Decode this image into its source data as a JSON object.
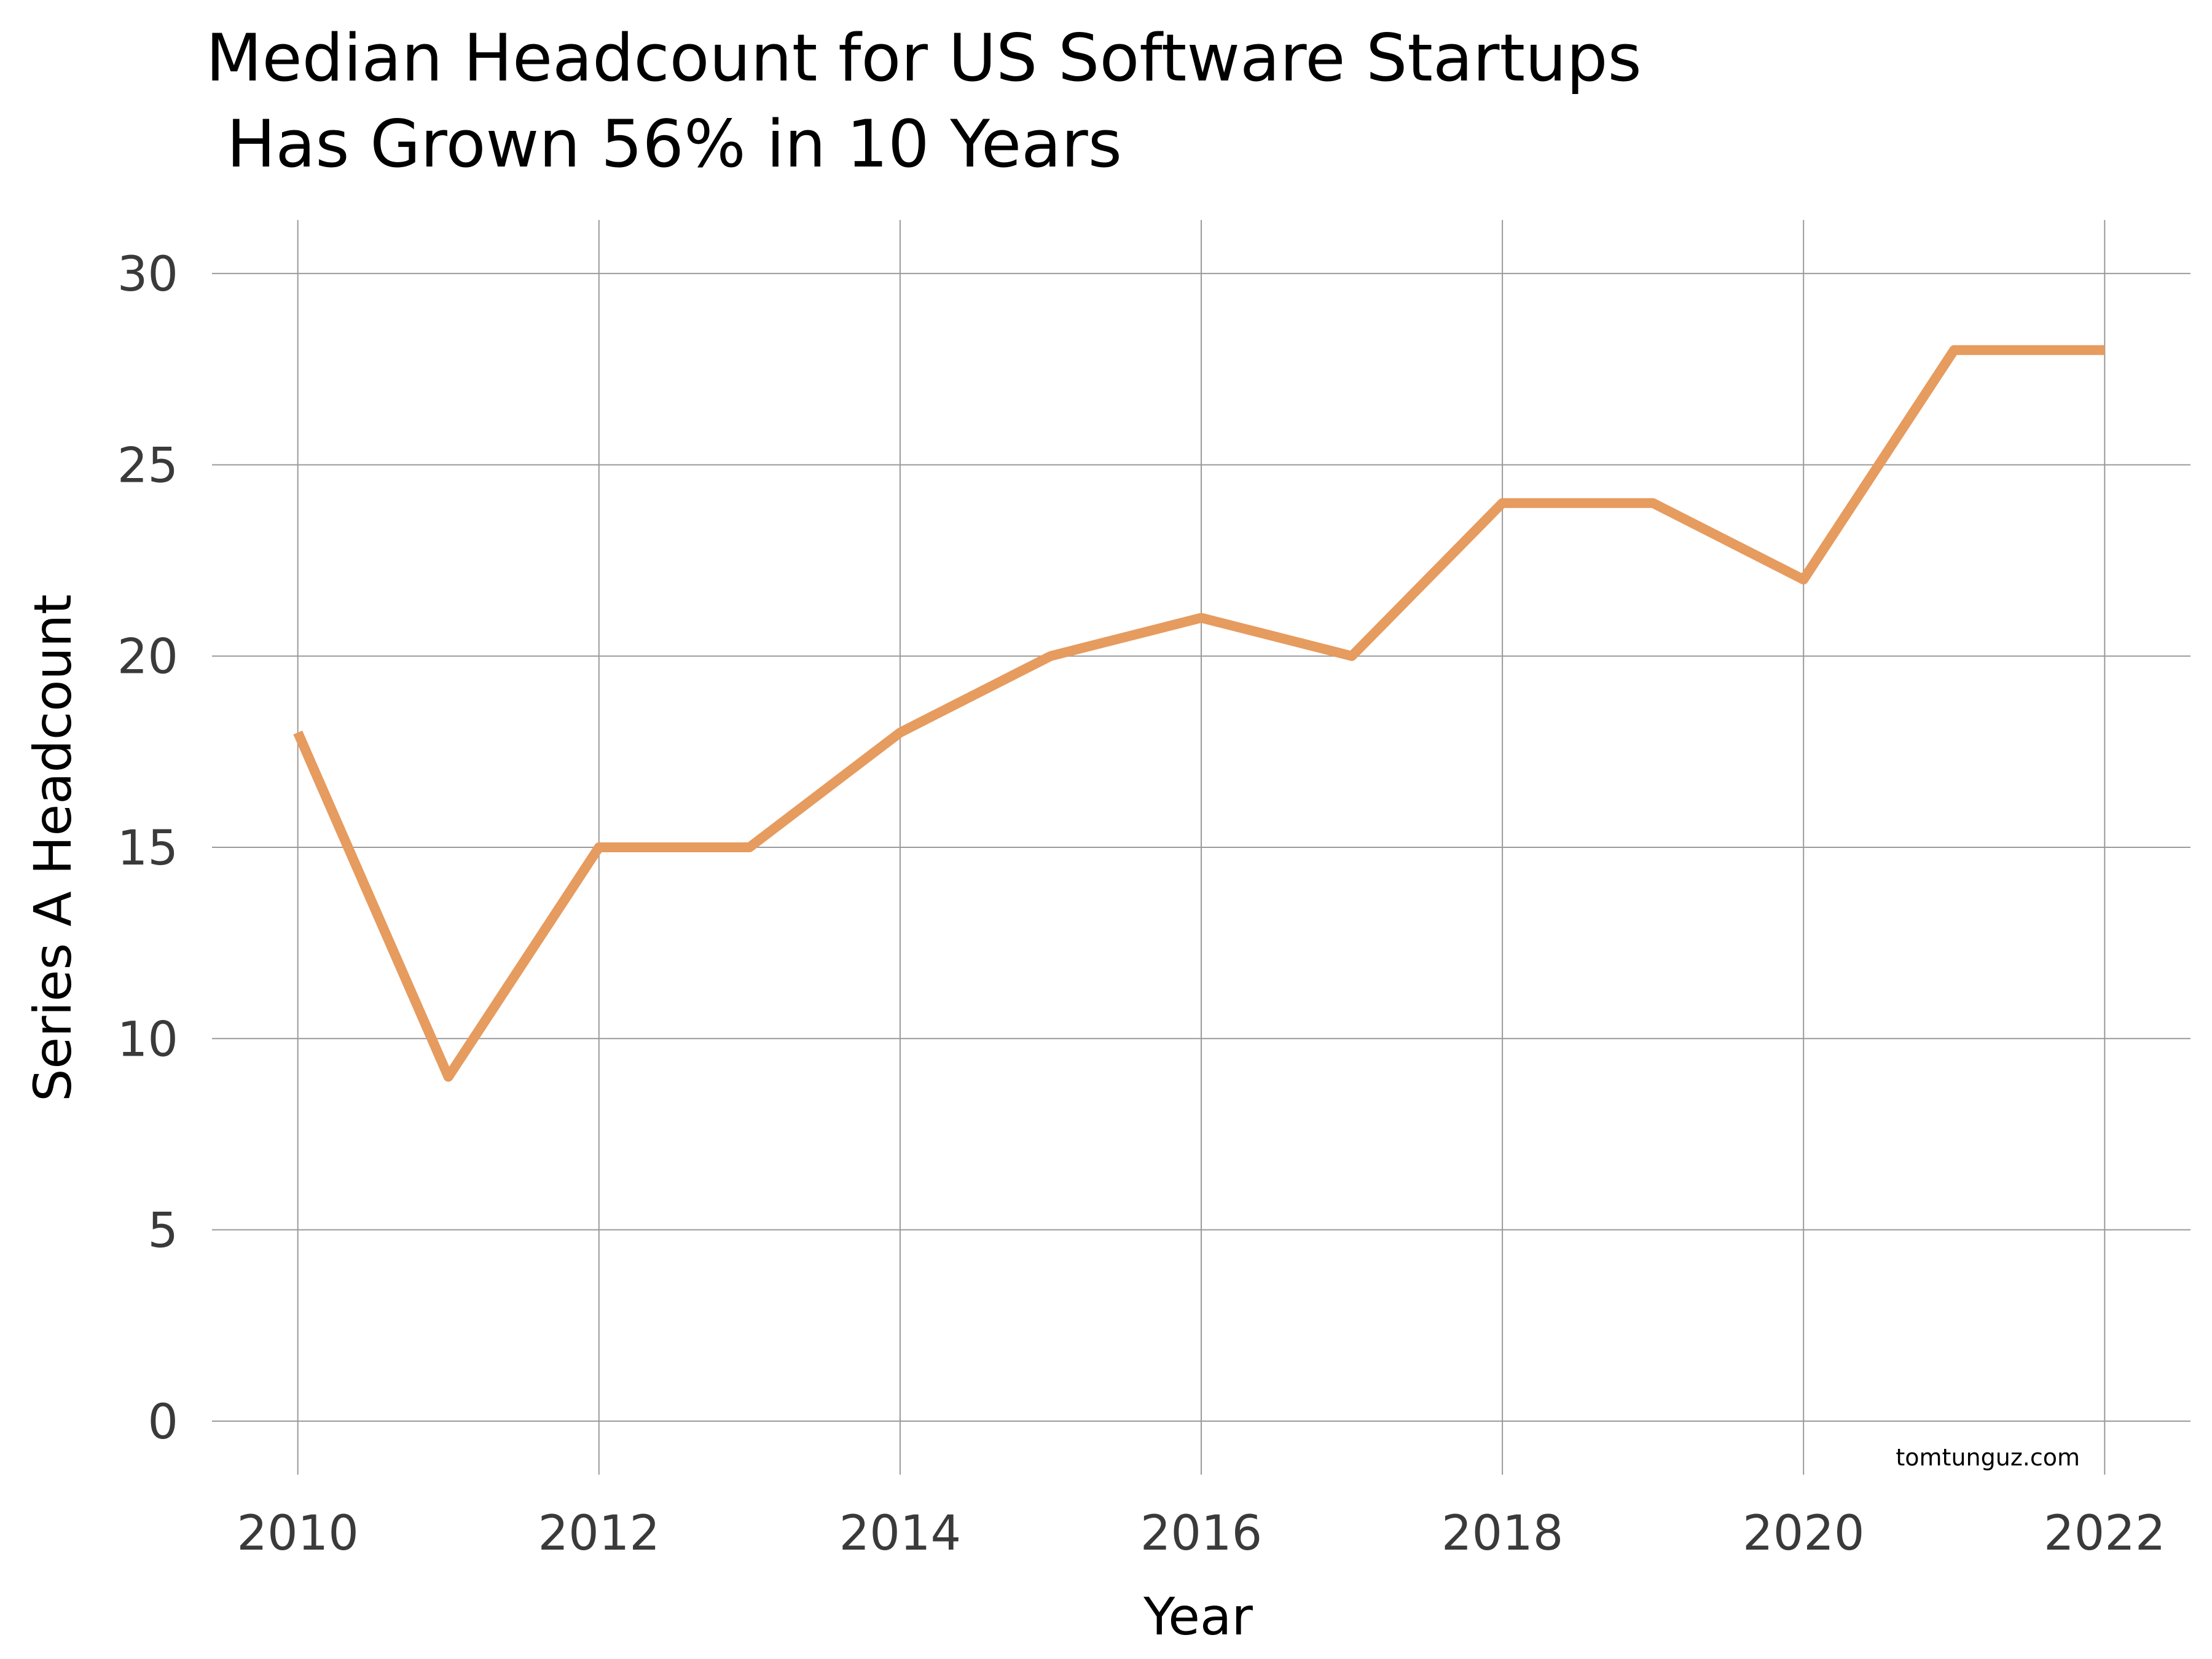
{
  "chart_data": {
    "type": "line",
    "title_lines": [
      "Median Headcount for US Software Startups",
      " Has Grown 56% in 10 Years"
    ],
    "xlabel": "Year",
    "ylabel": "Series A Headcount",
    "credit": "tomtunguz.com",
    "x": [
      2010,
      2011,
      2012,
      2013,
      2014,
      2015,
      2016,
      2017,
      2018,
      2019,
      2020,
      2021,
      2022
    ],
    "series": [
      {
        "values": [
          18,
          9,
          15,
          15,
          18,
          20,
          21,
          20,
          24,
          24,
          22,
          28,
          28
        ]
      }
    ],
    "xlim": [
      2009.43,
      2022.57
    ],
    "ylim": [
      -1.4,
      31.4
    ],
    "xticks": [
      "2010",
      "2012",
      "2014",
      "2016",
      "2018",
      "2020",
      "2022"
    ],
    "yticks": [
      "0",
      "5",
      "10",
      "15",
      "20",
      "25",
      "30"
    ],
    "grid": true,
    "line_color": "#E69B5F"
  }
}
